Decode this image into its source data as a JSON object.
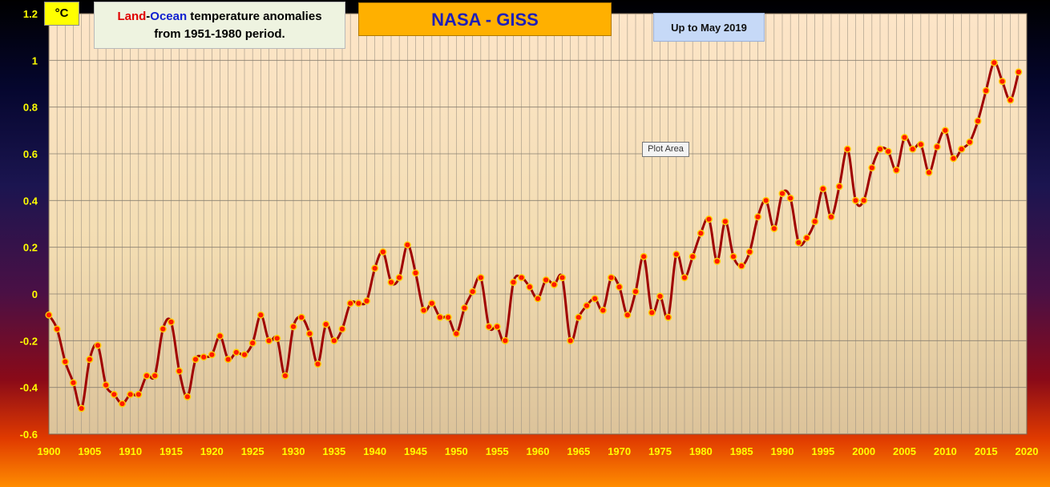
{
  "unit_label": "°C",
  "description": {
    "land": "Land",
    "dash": "-",
    "ocean": "Ocean",
    "rest": " temperature anomalies",
    "line2": "from 1951-1980 period."
  },
  "title": "NASA - GISS",
  "up_to": "Up to May 2019",
  "tooltip": "Plot Area",
  "colors": {
    "line": "#a00000",
    "marker_fill": "#ff1a00",
    "marker_stroke": "#ffd000",
    "tick_text": "#ffff00"
  },
  "chart_data": {
    "type": "line",
    "title": "NASA - GISS",
    "ylabel": "°C",
    "xlim": [
      1900,
      2020
    ],
    "ylim": [
      -0.6,
      1.2
    ],
    "x_ticks": [
      1900,
      1905,
      1910,
      1915,
      1920,
      1925,
      1930,
      1935,
      1940,
      1945,
      1950,
      1955,
      1960,
      1965,
      1970,
      1975,
      1980,
      1985,
      1990,
      1995,
      2000,
      2005,
      2010,
      2015,
      2020
    ],
    "y_ticks": [
      -0.6,
      -0.4,
      -0.2,
      0,
      0.2,
      0.4,
      0.6,
      0.8,
      1,
      1.2
    ],
    "y_tick_labels": [
      "-0.6",
      "-0.4",
      "-0.2",
      "0",
      "0.2",
      "0.4",
      "0.6",
      "0.8",
      "1",
      "1.2"
    ],
    "grid": true,
    "series": [
      {
        "name": "Land-Ocean temperature anomaly",
        "x": [
          1900,
          1901,
          1902,
          1903,
          1904,
          1905,
          1906,
          1907,
          1908,
          1909,
          1910,
          1911,
          1912,
          1913,
          1914,
          1915,
          1916,
          1917,
          1918,
          1919,
          1920,
          1921,
          1922,
          1923,
          1924,
          1925,
          1926,
          1927,
          1928,
          1929,
          1930,
          1931,
          1932,
          1933,
          1934,
          1935,
          1936,
          1937,
          1938,
          1939,
          1940,
          1941,
          1942,
          1943,
          1944,
          1945,
          1946,
          1947,
          1948,
          1949,
          1950,
          1951,
          1952,
          1953,
          1954,
          1955,
          1956,
          1957,
          1958,
          1959,
          1960,
          1961,
          1962,
          1963,
          1964,
          1965,
          1966,
          1967,
          1968,
          1969,
          1970,
          1971,
          1972,
          1973,
          1974,
          1975,
          1976,
          1977,
          1978,
          1979,
          1980,
          1981,
          1982,
          1983,
          1984,
          1985,
          1986,
          1987,
          1988,
          1989,
          1990,
          1991,
          1992,
          1993,
          1994,
          1995,
          1996,
          1997,
          1998,
          1999,
          2000,
          2001,
          2002,
          2003,
          2004,
          2005,
          2006,
          2007,
          2008,
          2009,
          2010,
          2011,
          2012,
          2013,
          2014,
          2015,
          2016,
          2017,
          2018,
          2019
        ],
        "values": [
          -0.09,
          -0.15,
          -0.29,
          -0.38,
          -0.49,
          -0.28,
          -0.22,
          -0.39,
          -0.43,
          -0.47,
          -0.43,
          -0.43,
          -0.35,
          -0.35,
          -0.15,
          -0.12,
          -0.33,
          -0.44,
          -0.28,
          -0.27,
          -0.26,
          -0.18,
          -0.28,
          -0.25,
          -0.26,
          -0.21,
          -0.09,
          -0.2,
          -0.19,
          -0.35,
          -0.14,
          -0.1,
          -0.17,
          -0.3,
          -0.13,
          -0.2,
          -0.15,
          -0.04,
          -0.04,
          -0.03,
          0.11,
          0.18,
          0.05,
          0.07,
          0.21,
          0.09,
          -0.07,
          -0.04,
          -0.1,
          -0.1,
          -0.17,
          -0.06,
          0.01,
          0.07,
          -0.14,
          -0.14,
          -0.2,
          0.05,
          0.07,
          0.03,
          -0.02,
          0.06,
          0.04,
          0.07,
          -0.2,
          -0.1,
          -0.05,
          -0.02,
          -0.07,
          0.07,
          0.03,
          -0.09,
          0.01,
          0.16,
          -0.08,
          -0.01,
          -0.1,
          0.17,
          0.07,
          0.16,
          0.26,
          0.32,
          0.14,
          0.31,
          0.16,
          0.12,
          0.18,
          0.33,
          0.4,
          0.28,
          0.43,
          0.41,
          0.22,
          0.24,
          0.31,
          0.45,
          0.33,
          0.46,
          0.62,
          0.4,
          0.4,
          0.54,
          0.62,
          0.61,
          0.53,
          0.67,
          0.62,
          0.64,
          0.52,
          0.63,
          0.7,
          0.58,
          0.62,
          0.65,
          0.74,
          0.87,
          0.99,
          0.91,
          0.83,
          0.95
        ]
      }
    ]
  }
}
